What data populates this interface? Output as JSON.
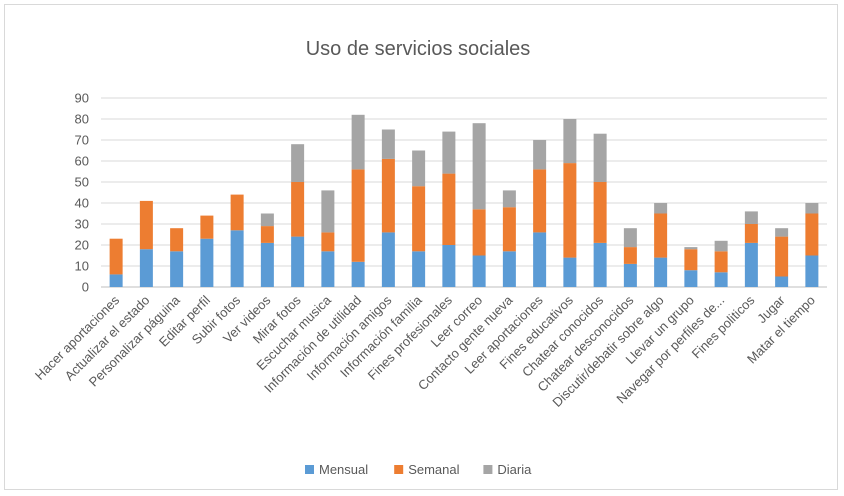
{
  "chart_data": {
    "type": "bar",
    "stacked": true,
    "title": "Uso de servicios sociales",
    "xlabel": "",
    "ylabel": "",
    "ylim": [
      0,
      90
    ],
    "yticks": [
      0,
      10,
      20,
      30,
      40,
      50,
      60,
      70,
      80,
      90
    ],
    "grid": true,
    "legend_position": "bottom",
    "categories": [
      "Hacer aportaciones",
      "Actualizar el estado",
      "Personalizar páguina",
      "Editar perfil",
      "Subir fotos",
      "Ver videos",
      "Mirar fotos",
      "Escuchar musica",
      "Información de utilidad",
      "Información amigos",
      "Información familia",
      "Fines profesionales",
      "Leer correo",
      "Contacto gente nueva",
      "Leer aportaciones",
      "Fines educativos",
      "Chatear conocidos",
      "Chatear desconocidos",
      "Discutir/debatir sobre algo",
      "Llevar un grupo",
      "Navegar por perfiles de...",
      "Fines politicos",
      "Jugar",
      "Matar el tiempo"
    ],
    "series": [
      {
        "name": "Mensual",
        "color": "#5b9bd5",
        "values": [
          6,
          18,
          17,
          23,
          27,
          21,
          24,
          17,
          12,
          26,
          17,
          20,
          15,
          17,
          26,
          14,
          21,
          11,
          14,
          8,
          7,
          21,
          5,
          15
        ]
      },
      {
        "name": "Semanal",
        "color": "#ed7d31",
        "values": [
          17,
          23,
          11,
          11,
          17,
          8,
          26,
          9,
          44,
          35,
          31,
          34,
          22,
          21,
          30,
          45,
          29,
          8,
          21,
          10,
          10,
          9,
          19,
          20
        ]
      },
      {
        "name": "Diaria",
        "color": "#a5a5a5",
        "values": [
          0,
          0,
          0,
          0,
          0,
          6,
          18,
          20,
          26,
          14,
          17,
          20,
          41,
          8,
          14,
          21,
          23,
          9,
          5,
          1,
          5,
          6,
          4,
          5
        ]
      }
    ]
  }
}
